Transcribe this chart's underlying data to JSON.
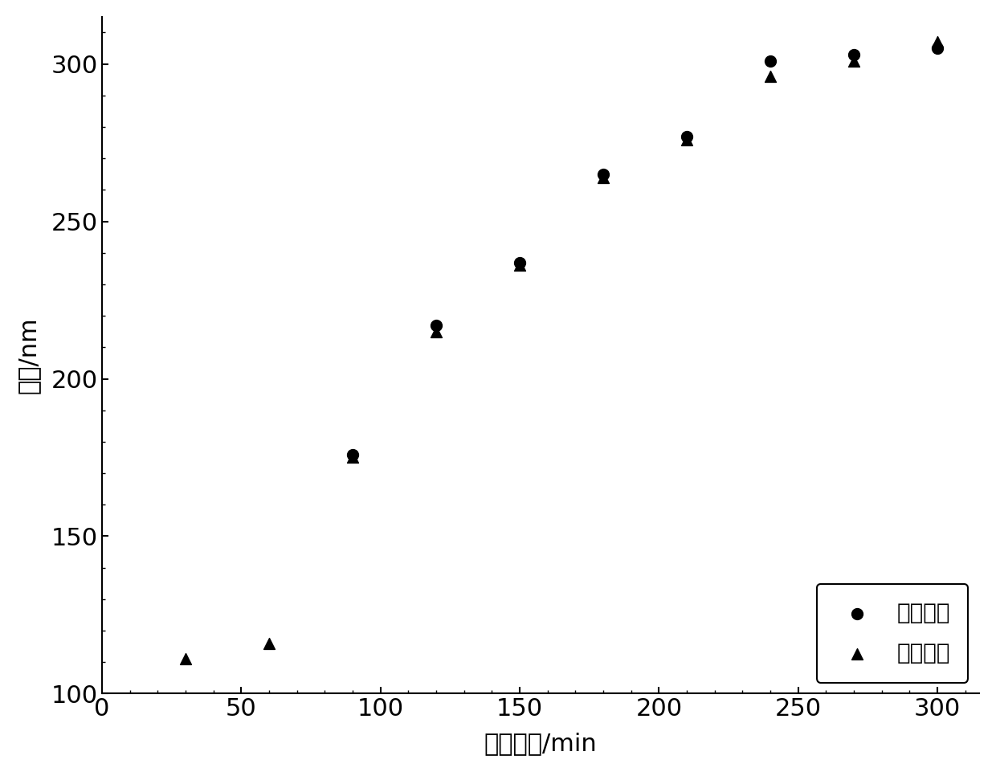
{
  "theoretical_x": [
    90,
    120,
    150,
    180,
    210,
    240,
    270,
    300
  ],
  "theoretical_y": [
    176,
    217,
    237,
    265,
    277,
    301,
    303,
    305
  ],
  "measured_x": [
    30,
    60,
    90,
    120,
    150,
    180,
    210,
    240,
    270,
    300
  ],
  "measured_y": [
    111,
    116,
    175,
    215,
    236,
    264,
    276,
    296,
    301,
    307
  ],
  "xlabel": "反应时间/min",
  "ylabel": "粒径/nm",
  "xlim": [
    0,
    315
  ],
  "ylim": [
    100,
    315
  ],
  "xticks": [
    0,
    50,
    100,
    150,
    200,
    250,
    300
  ],
  "yticks": [
    100,
    150,
    200,
    250,
    300
  ],
  "legend_theoretical": "理论粒径",
  "legend_measured": "实测粒径",
  "marker_size": 100,
  "font_size": 22,
  "legend_fontsize": 20,
  "background_color": "#ffffff",
  "marker_color": "#000000"
}
